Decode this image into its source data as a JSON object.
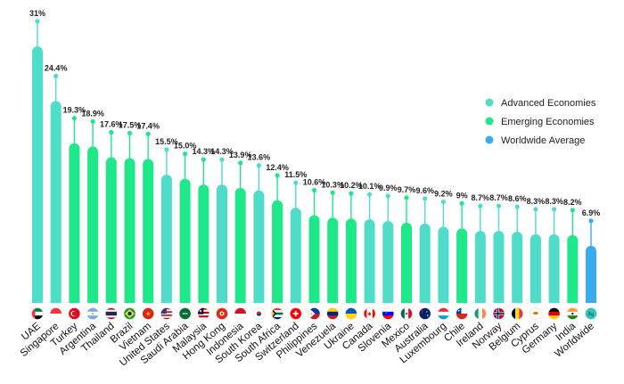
{
  "chart_data": {
    "type": "bar",
    "categories": [
      "UAE",
      "Singapore",
      "Turkey",
      "Argentina",
      "Thailand",
      "Brazil",
      "Vietnam",
      "United States",
      "Saudi Arabia",
      "Malaysia",
      "Hong Kong",
      "Indonesia",
      "South Korea",
      "South Africa",
      "Switzerland",
      "Philippines",
      "Venezuela",
      "Ukraine",
      "Canada",
      "Slovenia",
      "Mexico",
      "Australia",
      "Luxembourg",
      "Chile",
      "Ireland",
      "Norway",
      "Belgium",
      "Cyprus",
      "Germany",
      "India",
      "Worldwide"
    ],
    "value_labels": [
      "31%",
      "24.4%",
      "19.3%",
      "18.9%",
      "17.6%",
      "17.5%",
      "17.4%",
      "15.5%",
      "15.0%",
      "14.3%",
      "14.3%",
      "13.9%",
      "13.6%",
      "12.4%",
      "11.5%",
      "10.6%",
      "10.3%",
      "10.2%",
      "10.1%",
      "9.9%",
      "9.7%",
      "9.6%",
      "9.2%",
      "9%",
      "8.7%",
      "8.7%",
      "8.6%",
      "8.3%",
      "8.3%",
      "8.2%",
      "6.9%"
    ],
    "values": [
      31,
      24.4,
      19.3,
      18.9,
      17.6,
      17.5,
      17.4,
      15.5,
      15.0,
      14.3,
      14.3,
      13.9,
      13.6,
      12.4,
      11.5,
      10.6,
      10.3,
      10.2,
      10.1,
      9.9,
      9.7,
      9.6,
      9.2,
      9,
      8.7,
      8.7,
      8.6,
      8.3,
      8.3,
      8.2,
      6.9
    ],
    "groups": [
      "advanced",
      "advanced",
      "emerging",
      "emerging",
      "emerging",
      "emerging",
      "emerging",
      "advanced",
      "emerging",
      "emerging",
      "advanced",
      "emerging",
      "advanced",
      "emerging",
      "advanced",
      "emerging",
      "emerging",
      "emerging",
      "advanced",
      "advanced",
      "emerging",
      "advanced",
      "advanced",
      "emerging",
      "advanced",
      "advanced",
      "advanced",
      "advanced",
      "advanced",
      "emerging",
      "worldwide"
    ],
    "flags": [
      "uae-flag",
      "singapore-flag",
      "turkey-flag",
      "argentina-flag",
      "thailand-flag",
      "brazil-flag",
      "vietnam-flag",
      "usa-flag",
      "saudi-flag",
      "malaysia-flag",
      "hongkong-flag",
      "indonesia-flag",
      "southkorea-flag",
      "southafrica-flag",
      "switzerland-flag",
      "philippines-flag",
      "venezuela-flag",
      "ukraine-flag",
      "canada-flag",
      "slovenia-flag",
      "mexico-flag",
      "australia-flag",
      "luxembourg-flag",
      "chile-flag",
      "ireland-flag",
      "norway-flag",
      "belgium-flag",
      "cyprus-flag",
      "germany-flag",
      "india-flag",
      "globe-icon"
    ],
    "legend": [
      {
        "key": "advanced",
        "label": "Advanced Economies",
        "color": "#4fdcc8"
      },
      {
        "key": "emerging",
        "label": "Emerging Economies",
        "color": "#1ee88a"
      },
      {
        "key": "worldwide",
        "label": "Worldwide Average",
        "color": "#3aabf0"
      }
    ],
    "legend_position": "right",
    "ylim": [
      0,
      33
    ],
    "grid": false,
    "title": "",
    "xlabel": "",
    "ylabel": ""
  }
}
